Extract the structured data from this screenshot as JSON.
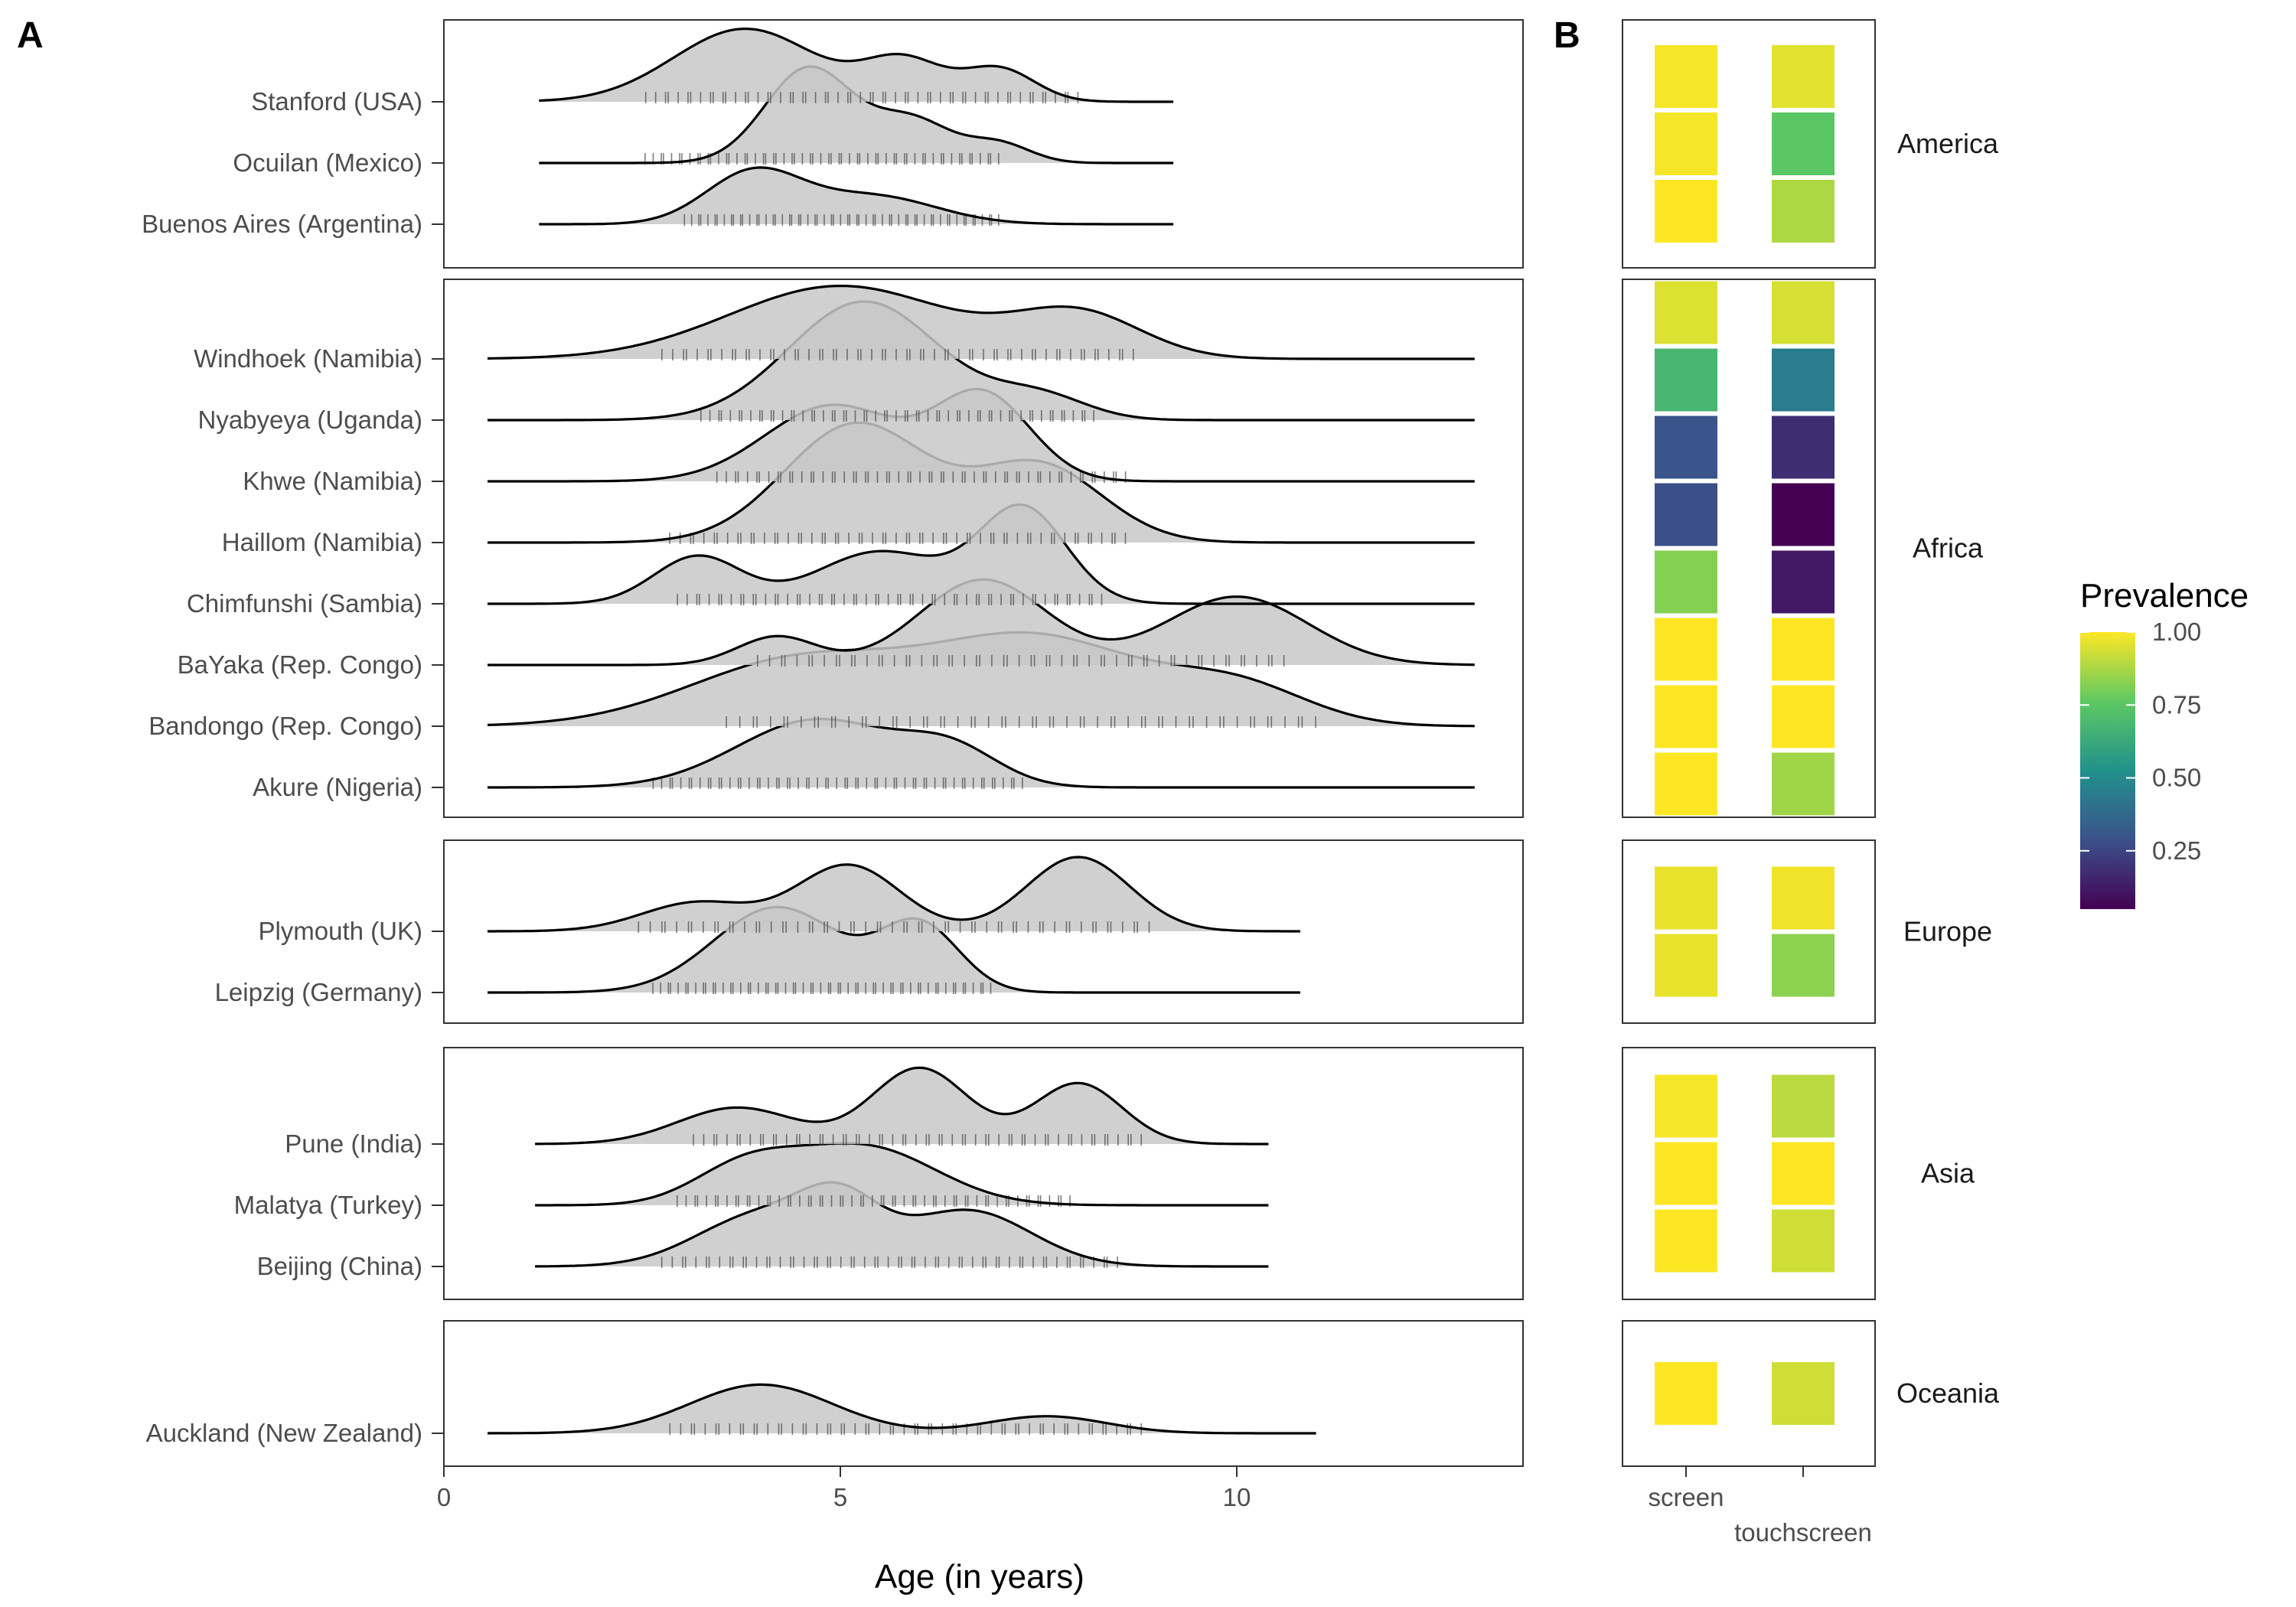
{
  "panel_labels": {
    "a": "A",
    "b": "B"
  },
  "colors": {
    "ridge_fill": "#c8c8c8",
    "ridge_line": "#000000",
    "rug": "#444444",
    "frame": "#333333"
  },
  "chart_data": [
    {
      "type": "ridgeline",
      "panel": "A",
      "xlabel": "Age (in years)",
      "xlim": [
        0,
        13.7
      ],
      "xticks": [
        0,
        5,
        10
      ],
      "groups": [
        {
          "name": "America",
          "sites": [
            {
              "label": "Stanford (USA)",
              "xrange": [
                1.2,
                9.2
              ],
              "ymax": 1.3,
              "peaks": [
                [
                  3.8,
                  0.9,
                  1.0
                ],
                [
                  5.8,
                  0.5,
                  0.55
                ],
                [
                  7.0,
                  0.45,
                  0.45
                ]
              ],
              "rug": [
                2.5,
                8.0
              ]
            },
            {
              "label": "Ocuilan (Mexico)",
              "xrange": [
                1.2,
                9.2
              ],
              "ymax": 1.0,
              "peaks": [
                [
                  4.6,
                  0.55,
                  1.0
                ],
                [
                  5.9,
                  0.5,
                  0.45
                ],
                [
                  7.0,
                  0.4,
                  0.2
                ]
              ],
              "rug": [
                2.5,
                7.0
              ]
            },
            {
              "label": "Buenos Aires (Argentina)",
              "xrange": [
                1.2,
                9.2
              ],
              "ymax": 1.85,
              "peaks": [
                [
                  3.9,
                  0.6,
                  1.0
                ],
                [
                  5.4,
                  0.8,
                  0.55
                ]
              ],
              "rug": [
                3.0,
                7.0
              ]
            }
          ]
        },
        {
          "name": "Africa",
          "sites": [
            {
              "label": "Windhoek (Namibia)",
              "xrange": [
                0.55,
                13.0
              ],
              "ymax": 1.3,
              "peaks": [
                [
                  5.0,
                  1.4,
                  1.0
                ],
                [
                  8.0,
                  0.8,
                  0.6
                ]
              ],
              "rug": [
                2.7,
                8.7
              ]
            },
            {
              "label": "Nyabyeya (Uganda)",
              "xrange": [
                0.55,
                13.0
              ],
              "ymax": 0.8,
              "peaks": [
                [
                  5.3,
                  0.95,
                  1.0
                ],
                [
                  7.5,
                  0.6,
                  0.2
                ]
              ],
              "rug": [
                3.2,
                8.2
              ]
            },
            {
              "label": "Khwe (Namibia)",
              "xrange": [
                0.55,
                13.0
              ],
              "ymax": 1.0,
              "peaks": [
                [
                  4.9,
                  0.85,
                  0.8
                ],
                [
                  6.8,
                  0.6,
                  0.9
                ]
              ],
              "rug": [
                3.4,
                8.6
              ]
            },
            {
              "label": "Haillom (Namibia)",
              "xrange": [
                0.55,
                13.0
              ],
              "ymax": 0.8,
              "peaks": [
                [
                  5.2,
                  0.9,
                  1.0
                ],
                [
                  7.5,
                  0.8,
                  0.65
                ]
              ],
              "rug": [
                2.8,
                8.6
              ]
            },
            {
              "label": "Chimfunshi (Sambia)",
              "xrange": [
                0.55,
                13.0
              ],
              "ymax": 1.0,
              "peaks": [
                [
                  3.2,
                  0.55,
                  0.5
                ],
                [
                  5.5,
                  0.8,
                  0.55
                ],
                [
                  7.3,
                  0.55,
                  1.0
                ]
              ],
              "rug": [
                2.9,
                8.3
              ]
            },
            {
              "label": "BaYaka (Rep. Congo)",
              "xrange": [
                0.55,
                13.0
              ],
              "ymax": 1.0,
              "peaks": [
                [
                  4.2,
                  0.5,
                  0.3
                ],
                [
                  6.8,
                  0.8,
                  0.9
                ],
                [
                  10.0,
                  0.9,
                  0.72
                ]
              ],
              "rug": [
                3.9,
                10.6
              ]
            },
            {
              "label": "Bandongo (Rep. Congo)",
              "xrange": [
                0.55,
                13.0
              ],
              "ymax": 1.0,
              "peaks": [
                [
                  4.5,
                  1.4,
                  0.7
                ],
                [
                  7.5,
                  1.3,
                  0.9
                ],
                [
                  10.0,
                  0.9,
                  0.4
                ]
              ],
              "rug": [
                3.5,
                11.0
              ]
            },
            {
              "label": "Akure (Nigeria)",
              "xrange": [
                0.55,
                13.0
              ],
              "ymax": 1.4,
              "peaks": [
                [
                  4.7,
                  1.0,
                  1.0
                ],
                [
                  6.4,
                  0.6,
                  0.5
                ]
              ],
              "rug": [
                2.6,
                7.3
              ]
            }
          ]
        },
        {
          "name": "Europe",
          "sites": [
            {
              "label": "Plymouth (UK)",
              "xrange": [
                0.55,
                10.8
              ],
              "ymax": 1.15,
              "peaks": [
                [
                  3.2,
                  0.7,
                  0.35
                ],
                [
                  5.1,
                  0.65,
                  0.8
                ],
                [
                  8.0,
                  0.65,
                  0.9
                ]
              ],
              "rug": [
                2.4,
                8.9
              ]
            },
            {
              "label": "Leipzig (Germany)",
              "xrange": [
                0.55,
                10.8
              ],
              "ymax": 1.0,
              "peaks": [
                [
                  4.2,
                  0.8,
                  0.9
                ],
                [
                  6.0,
                  0.5,
                  0.7
                ]
              ],
              "rug": [
                2.6,
                6.9
              ]
            }
          ]
        },
        {
          "name": "Asia",
          "sites": [
            {
              "label": "Pune (India)",
              "xrange": [
                1.15,
                10.4
              ],
              "ymax": 1.25,
              "peaks": [
                [
                  3.7,
                  0.75,
                  0.48
                ],
                [
                  6.0,
                  0.6,
                  1.0
                ],
                [
                  8.0,
                  0.55,
                  0.8
                ]
              ],
              "rug": [
                3.1,
                8.8
              ]
            },
            {
              "label": "Malatya (Turkey)",
              "xrange": [
                1.15,
                10.4
              ],
              "ymax": 1.3,
              "peaks": [
                [
                  3.8,
                  0.65,
                  0.5
                ],
                [
                  5.3,
                  0.9,
                  0.8
                ]
              ],
              "rug": [
                2.9,
                7.9
              ]
            },
            {
              "label": "Beijing (China)",
              "xrange": [
                1.15,
                10.4
              ],
              "ymax": 1.1,
              "peaks": [
                [
                  4.0,
                  0.8,
                  0.6
                ],
                [
                  5.0,
                  0.5,
                  0.6
                ],
                [
                  6.6,
                  0.8,
                  0.65
                ]
              ],
              "rug": [
                2.7,
                8.5
              ]
            }
          ]
        },
        {
          "name": "Oceania",
          "sites": [
            {
              "label": "Auckland (New Zealand)",
              "xrange": [
                0.55,
                11.0
              ],
              "ymax": 1.95,
              "peaks": [
                [
                  4.0,
                  0.9,
                  1.0
                ],
                [
                  7.6,
                  0.75,
                  0.35
                ]
              ],
              "rug": [
                2.8,
                8.8
              ]
            }
          ]
        }
      ]
    },
    {
      "type": "heatmap",
      "panel": "B",
      "x_categories": [
        "screen",
        "touchscreen"
      ],
      "legend": {
        "title": "Prevalence",
        "ticks": [
          1.0,
          0.75,
          0.5,
          0.25
        ],
        "tick_labels": [
          "1.00",
          "0.75",
          "0.50",
          "0.25"
        ],
        "range": [
          0.05,
          1.0
        ]
      },
      "groups": [
        {
          "name": "America",
          "rows": [
            {
              "site": "Stanford (USA)",
              "values": [
                0.99,
                0.96
              ]
            },
            {
              "site": "Ocuilan (Mexico)",
              "values": [
                0.99,
                0.75
              ]
            },
            {
              "site": "Buenos Aires (Argentina)",
              "values": [
                1.0,
                0.88
              ]
            }
          ]
        },
        {
          "name": "Africa",
          "rows": [
            {
              "site": "Windhoek (Namibia)",
              "values": [
                0.95,
                0.94
              ]
            },
            {
              "site": "Nyabyeya (Uganda)",
              "values": [
                0.68,
                0.45
              ]
            },
            {
              "site": "Khwe (Namibia)",
              "values": [
                0.3,
                0.18
              ]
            },
            {
              "site": "Haillom (Namibia)",
              "values": [
                0.28,
                0.05
              ]
            },
            {
              "site": "Chimfunshi (Sambia)",
              "values": [
                0.82,
                0.12
              ]
            },
            {
              "site": "BaYaka (Rep. Congo)",
              "values": [
                1.0,
                1.0
              ]
            },
            {
              "site": "Bandongo (Rep. Congo)",
              "values": [
                1.0,
                1.0
              ]
            },
            {
              "site": "Akure (Nigeria)",
              "values": [
                1.0,
                0.86
              ]
            }
          ]
        },
        {
          "name": "Europe",
          "rows": [
            {
              "site": "Plymouth (UK)",
              "values": [
                0.97,
                0.98
              ]
            },
            {
              "site": "Leipzig (Germany)",
              "values": [
                0.97,
                0.83
              ]
            }
          ]
        },
        {
          "name": "Asia",
          "rows": [
            {
              "site": "Pune (India)",
              "values": [
                0.99,
                0.9
              ]
            },
            {
              "site": "Malatya (Turkey)",
              "values": [
                1.0,
                1.0
              ]
            },
            {
              "site": "Beijing (China)",
              "values": [
                1.0,
                0.93
              ]
            }
          ]
        },
        {
          "name": "Oceania",
          "rows": [
            {
              "site": "Auckland (New Zealand)",
              "values": [
                1.0,
                0.93
              ]
            }
          ]
        }
      ]
    }
  ]
}
